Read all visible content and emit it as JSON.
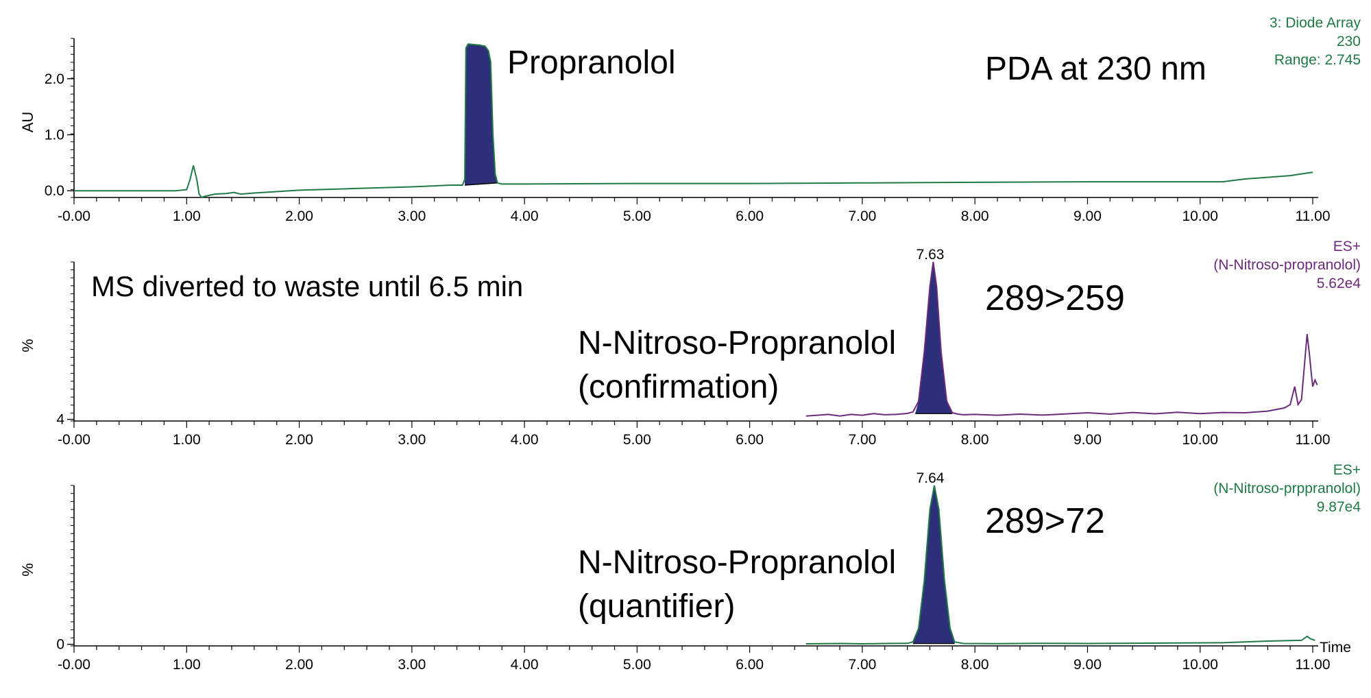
{
  "colors": {
    "axis": "#000000",
    "pda_trace": "#1f7a45",
    "ms_confirm_trace": "#6b2a7a",
    "ms_quant_trace": "#1f7a45",
    "peak_fill": "#2e2f7a",
    "text": "#000000"
  },
  "chart_data": [
    {
      "type": "line",
      "id": "pda",
      "ylabel": "AU",
      "xlim": [
        0,
        11.0
      ],
      "ylim": [
        -0.12,
        2.72
      ],
      "xticks": [
        0,
        1,
        2,
        3,
        4,
        5,
        6,
        7,
        8,
        9,
        10,
        11
      ],
      "xtick_labels": [
        "-0.00",
        "1.00",
        "2.00",
        "3.00",
        "4.00",
        "5.00",
        "6.00",
        "7.00",
        "8.00",
        "9.00",
        "10.00",
        "11.00"
      ],
      "yticks": [
        0,
        1.0,
        2.0
      ],
      "ytick_labels": [
        "0.0",
        "1.0",
        "2.0"
      ],
      "series": [
        {
          "points": [
            [
              0,
              0
            ],
            [
              0.6,
              0
            ],
            [
              0.7,
              0.0
            ],
            [
              0.9,
              0.0
            ],
            [
              1.0,
              0.02
            ],
            [
              1.03,
              0.2
            ],
            [
              1.06,
              0.45
            ],
            [
              1.09,
              0.2
            ],
            [
              1.11,
              -0.05
            ],
            [
              1.13,
              -0.12
            ],
            [
              1.16,
              -0.1
            ],
            [
              1.25,
              -0.06
            ],
            [
              1.35,
              -0.05
            ],
            [
              1.42,
              -0.03
            ],
            [
              1.48,
              -0.06
            ],
            [
              1.6,
              -0.04
            ],
            [
              2.0,
              0.01
            ],
            [
              2.5,
              0.04
            ],
            [
              3.0,
              0.07
            ],
            [
              3.35,
              0.1
            ],
            [
              3.45,
              0.1
            ],
            [
              3.47,
              0.2
            ],
            [
              3.48,
              2.55
            ],
            [
              3.5,
              2.62
            ],
            [
              3.55,
              2.61
            ],
            [
              3.6,
              2.6
            ],
            [
              3.65,
              2.58
            ],
            [
              3.68,
              2.5
            ],
            [
              3.7,
              2.3
            ],
            [
              3.72,
              1.0
            ],
            [
              3.74,
              0.3
            ],
            [
              3.76,
              0.14
            ],
            [
              3.8,
              0.12
            ],
            [
              4.0,
              0.12
            ],
            [
              5.0,
              0.13
            ],
            [
              6.0,
              0.13
            ],
            [
              7.0,
              0.14
            ],
            [
              8.0,
              0.15
            ],
            [
              9.0,
              0.16
            ],
            [
              10.0,
              0.16
            ],
            [
              10.2,
              0.16
            ],
            [
              10.4,
              0.21
            ],
            [
              10.6,
              0.24
            ],
            [
              10.8,
              0.27
            ],
            [
              11.0,
              0.33
            ]
          ]
        }
      ],
      "peaks": [
        {
          "label": "Propranolol",
          "x_start": 3.47,
          "x_end": 3.76,
          "baseline": [
            0.1,
            0.14
          ]
        }
      ],
      "annotations": {
        "peak_label": "Propranolol",
        "method": "PDA at 230 nm",
        "header": [
          "3: Diode Array",
          "230",
          "Range: 2.745"
        ]
      }
    },
    {
      "type": "line",
      "id": "ms_confirm",
      "ylabel": "%",
      "xlim": [
        0,
        11.0
      ],
      "ylim": [
        3,
        100
      ],
      "xticks": [
        0,
        1,
        2,
        3,
        4,
        5,
        6,
        7,
        8,
        9,
        10,
        11
      ],
      "xtick_labels": [
        "-0.00",
        "1.00",
        "2.00",
        "3.00",
        "4.00",
        "5.00",
        "6.00",
        "7.00",
        "8.00",
        "9.00",
        "10.00",
        "11.00"
      ],
      "yticks": [
        4
      ],
      "ytick_labels": [
        "4"
      ],
      "series": [
        {
          "points": [
            [
              6.5,
              6.0
            ],
            [
              6.6,
              6.5
            ],
            [
              6.7,
              7.0
            ],
            [
              6.8,
              6.0
            ],
            [
              6.9,
              7.0
            ],
            [
              7.0,
              6.5
            ],
            [
              7.1,
              7.5
            ],
            [
              7.2,
              6.8
            ],
            [
              7.3,
              7.0
            ],
            [
              7.4,
              7.6
            ],
            [
              7.45,
              8.5
            ],
            [
              7.5,
              15
            ],
            [
              7.55,
              45
            ],
            [
              7.6,
              85
            ],
            [
              7.63,
              100
            ],
            [
              7.66,
              85
            ],
            [
              7.7,
              45
            ],
            [
              7.75,
              15
            ],
            [
              7.8,
              8
            ],
            [
              7.85,
              7.2
            ],
            [
              7.9,
              6.8
            ],
            [
              8.0,
              7.0
            ],
            [
              8.2,
              6.5
            ],
            [
              8.4,
              7.2
            ],
            [
              8.6,
              6.6
            ],
            [
              8.8,
              7.3
            ],
            [
              9.0,
              8.0
            ],
            [
              9.2,
              7.2
            ],
            [
              9.4,
              8.2
            ],
            [
              9.6,
              7.4
            ],
            [
              9.8,
              8.3
            ],
            [
              10.0,
              7.5
            ],
            [
              10.2,
              8.2
            ],
            [
              10.4,
              8.0
            ],
            [
              10.6,
              9.0
            ],
            [
              10.75,
              11
            ],
            [
              10.8,
              13
            ],
            [
              10.84,
              24
            ],
            [
              10.87,
              13
            ],
            [
              10.9,
              16
            ],
            [
              10.93,
              40
            ],
            [
              10.95,
              56
            ],
            [
              10.97,
              44
            ],
            [
              10.99,
              30
            ],
            [
              11.0,
              24
            ],
            [
              11.02,
              28
            ],
            [
              11.04,
              25
            ]
          ]
        }
      ],
      "peaks": [
        {
          "label": "7.63",
          "x_start": 7.47,
          "x_end": 7.8,
          "baseline": [
            7.5,
            7.5
          ]
        }
      ],
      "annotations": {
        "peak_rt": "7.63",
        "note": "MS diverted to waste until 6.5 min",
        "transition": "289>259",
        "compound": [
          "N-Nitroso-Propranolol",
          "(confirmation)"
        ],
        "header": [
          "ES+",
          "(N-Nitroso-propranolol)",
          "5.62e4"
        ]
      }
    },
    {
      "type": "line",
      "id": "ms_quant",
      "ylabel": "%",
      "xlim": [
        0,
        11.0
      ],
      "ylim": [
        -1,
        100
      ],
      "xticks": [
        0,
        1,
        2,
        3,
        4,
        5,
        6,
        7,
        8,
        9,
        10,
        11
      ],
      "xtick_labels": [
        "-0.00",
        "1.00",
        "2.00",
        "3.00",
        "4.00",
        "5.00",
        "6.00",
        "7.00",
        "8.00",
        "9.00",
        "10.00",
        "11.00"
      ],
      "yticks": [
        0
      ],
      "ytick_labels": [
        "0"
      ],
      "xlabel": "Time",
      "series": [
        {
          "points": [
            [
              6.5,
              0.3
            ],
            [
              6.8,
              0.5
            ],
            [
              7.0,
              0.3
            ],
            [
              7.2,
              0.5
            ],
            [
              7.4,
              0.6
            ],
            [
              7.45,
              1.5
            ],
            [
              7.5,
              10
            ],
            [
              7.55,
              40
            ],
            [
              7.6,
              85
            ],
            [
              7.64,
              100
            ],
            [
              7.68,
              85
            ],
            [
              7.73,
              40
            ],
            [
              7.78,
              10
            ],
            [
              7.82,
              1.5
            ],
            [
              7.9,
              0.5
            ],
            [
              8.2,
              0.4
            ],
            [
              8.6,
              0.6
            ],
            [
              9.0,
              0.5
            ],
            [
              9.4,
              0.7
            ],
            [
              9.8,
              0.8
            ],
            [
              10.2,
              1.0
            ],
            [
              10.6,
              2.0
            ],
            [
              10.9,
              2.5
            ],
            [
              10.95,
              5
            ],
            [
              10.98,
              3.5
            ],
            [
              11.02,
              2.5
            ]
          ]
        }
      ],
      "peaks": [
        {
          "label": "7.64",
          "x_start": 7.45,
          "x_end": 7.82,
          "baseline": [
            0.5,
            0.5
          ]
        }
      ],
      "annotations": {
        "peak_rt": "7.64",
        "transition": "289>72",
        "compound": [
          "N-Nitroso-Propranolol",
          "(quantifier)"
        ],
        "header": [
          "ES+",
          "(N-Nitroso-prppranolol)",
          "9.87e4"
        ]
      }
    }
  ]
}
